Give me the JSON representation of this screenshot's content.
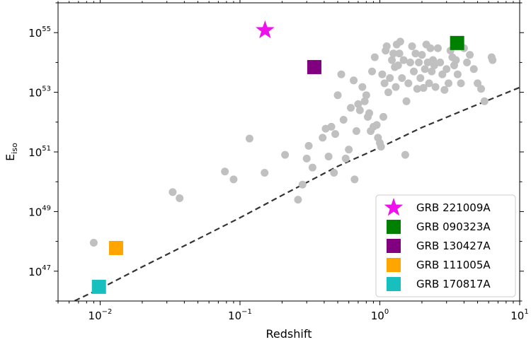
{
  "chart_data": {
    "type": "scatter",
    "xlabel": "Redshift",
    "ylabel": {
      "base": "E",
      "sub": "iso"
    },
    "x_scale": "log",
    "y_scale": "log",
    "xlim": [
      0.005,
      10
    ],
    "ylim": [
      1e+46,
      1e+56
    ],
    "x_ticks": [
      {
        "value": 0.01,
        "base": "10",
        "exp": "−2"
      },
      {
        "value": 0.1,
        "base": "10",
        "exp": "−1"
      },
      {
        "value": 1,
        "base": "10",
        "exp": "0"
      },
      {
        "value": 10,
        "base": "10",
        "exp": "1"
      }
    ],
    "y_ticks": [
      {
        "value": 1e+47,
        "base": "10",
        "exp": "47"
      },
      {
        "value": 1e+49,
        "base": "10",
        "exp": "49"
      },
      {
        "value": 1e+51,
        "base": "10",
        "exp": "51"
      },
      {
        "value": 1e+53,
        "base": "10",
        "exp": "53"
      },
      {
        "value": 1e+55,
        "base": "10",
        "exp": "55"
      }
    ],
    "grid": false,
    "legend_position": "bottom-right",
    "background_sample": {
      "color": "#c0c0c0",
      "points": [
        [
          0.009,
          9e+47
        ],
        [
          0.033,
          4.5e+49
        ],
        [
          0.037,
          2.8e+49
        ],
        [
          0.078,
          2.2e+50
        ],
        [
          0.09,
          1.2e+50
        ],
        [
          0.117,
          2.8e+51
        ],
        [
          0.15,
          2e+50
        ],
        [
          0.21,
          8e+50
        ],
        [
          0.26,
          2.5e+49
        ],
        [
          0.28,
          8e+49
        ],
        [
          0.3,
          6e+50
        ],
        [
          0.31,
          1.6e+51
        ],
        [
          0.33,
          3e+50
        ],
        [
          0.39,
          3e+51
        ],
        [
          0.41,
          6e+51
        ],
        [
          0.43,
          7e+50
        ],
        [
          0.45,
          7e+51
        ],
        [
          0.47,
          2e+50
        ],
        [
          0.48,
          4e+51
        ],
        [
          0.5,
          8e+52
        ],
        [
          0.53,
          4e+53
        ],
        [
          0.55,
          1.2e+52
        ],
        [
          0.57,
          6e+50
        ],
        [
          0.6,
          1.2e+51
        ],
        [
          0.62,
          3e+52
        ],
        [
          0.65,
          2.5e+53
        ],
        [
          0.66,
          1.2e+50
        ],
        [
          0.68,
          5e+51
        ],
        [
          0.7,
          4e+52
        ],
        [
          0.72,
          2.5e+52
        ],
        [
          0.75,
          1.5e+53
        ],
        [
          0.78,
          5e+52
        ],
        [
          0.8,
          8e+52
        ],
        [
          0.82,
          1.5e+52
        ],
        [
          0.84,
          2e+52
        ],
        [
          0.86,
          5e+51
        ],
        [
          0.88,
          5e+53
        ],
        [
          0.9,
          7e+51
        ],
        [
          0.92,
          1.5e+54
        ],
        [
          0.95,
          8e+51
        ],
        [
          0.97,
          3e+51
        ],
        [
          1.0,
          2e+51
        ],
        [
          1.02,
          1.5e+51
        ],
        [
          1.04,
          4e+53
        ],
        [
          1.06,
          1.5e+52
        ],
        [
          1.08,
          2e+53
        ],
        [
          1.1,
          2.5e+54
        ],
        [
          1.12,
          3.5e+54
        ],
        [
          1.15,
          1e+53
        ],
        [
          1.18,
          3e+53
        ],
        [
          1.22,
          1.2e+54
        ],
        [
          1.25,
          2e+54
        ],
        [
          1.28,
          7e+53
        ],
        [
          1.3,
          1.5e+53
        ],
        [
          1.32,
          4e+54
        ],
        [
          1.35,
          8e+53
        ],
        [
          1.38,
          2e+54
        ],
        [
          1.4,
          5e+54
        ],
        [
          1.44,
          3e+53
        ],
        [
          1.48,
          1.2e+54
        ],
        [
          1.52,
          8e+50
        ],
        [
          1.55,
          5e+52
        ],
        [
          1.6,
          2e+53
        ],
        [
          1.65,
          1e+54
        ],
        [
          1.7,
          3.5e+54
        ],
        [
          1.75,
          5e+53
        ],
        [
          1.8,
          2e+54
        ],
        [
          1.85,
          1.3e+53
        ],
        [
          1.9,
          1e+54
        ],
        [
          1.95,
          3e+53
        ],
        [
          2.0,
          1.8e+54
        ],
        [
          2.05,
          1.4e+53
        ],
        [
          2.1,
          6e+53
        ],
        [
          2.15,
          4e+54
        ],
        [
          2.2,
          1e+54
        ],
        [
          2.25,
          2e+53
        ],
        [
          2.3,
          3e+54
        ],
        [
          2.35,
          5e+53
        ],
        [
          2.4,
          1.2e+54
        ],
        [
          2.45,
          8e+53
        ],
        [
          2.5,
          1.5e+53
        ],
        [
          2.6,
          3e+54
        ],
        [
          2.7,
          1e+54
        ],
        [
          2.8,
          4e+53
        ],
        [
          2.9,
          1.2e+53
        ],
        [
          3.0,
          6e+53
        ],
        [
          3.1,
          2e+53
        ],
        [
          3.2,
          2.5e+54
        ],
        [
          3.3,
          1.5e+54
        ],
        [
          3.4,
          8e+53
        ],
        [
          3.5,
          1.2e+54
        ],
        [
          3.6,
          4e+53
        ],
        [
          3.8,
          2e+53
        ],
        [
          4.0,
          3e+54
        ],
        [
          4.2,
          1e+54
        ],
        [
          4.4,
          1.8e+54
        ],
        [
          4.7,
          6e+53
        ],
        [
          5.0,
          2e+53
        ],
        [
          5.3,
          1.3e+53
        ],
        [
          5.6,
          5e+52
        ],
        [
          6.3,
          1.5e+54
        ],
        [
          6.4,
          1.2e+54
        ]
      ]
    },
    "series": [
      {
        "name": "GRB 221009A",
        "marker": "star",
        "color": "#ee11ee",
        "x": 0.151,
        "y": 1.2e+55
      },
      {
        "name": "GRB 090323A",
        "marker": "square",
        "color": "#008000",
        "x": 3.57,
        "y": 4.5e+54
      },
      {
        "name": "GRB 130427A",
        "marker": "square",
        "color": "#800080",
        "x": 0.34,
        "y": 7e+53
      },
      {
        "name": "GRB 111005A",
        "marker": "square",
        "color": "#ffa500",
        "x": 0.013,
        "y": 6e+47
      },
      {
        "name": "GRB 170817A",
        "marker": "square",
        "color": "#17bfbf",
        "x": 0.0098,
        "y": 3e+46
      }
    ],
    "threshold_line": {
      "style": "dashed",
      "color": "#333333",
      "points": [
        [
          0.005,
          5.5e+45
        ],
        [
          0.01,
          2.6e+46
        ],
        [
          0.02,
          1.4e+47
        ],
        [
          0.05,
          1.2e+48
        ],
        [
          0.1,
          6.2e+48
        ],
        [
          0.2,
          3.5e+49
        ],
        [
          0.5,
          3.3e+50
        ],
        [
          1.0,
          1.4e+51
        ],
        [
          2.0,
          6.6e+51
        ],
        [
          5.0,
          3.9e+52
        ],
        [
          10.0,
          1.45e+53
        ]
      ]
    }
  }
}
